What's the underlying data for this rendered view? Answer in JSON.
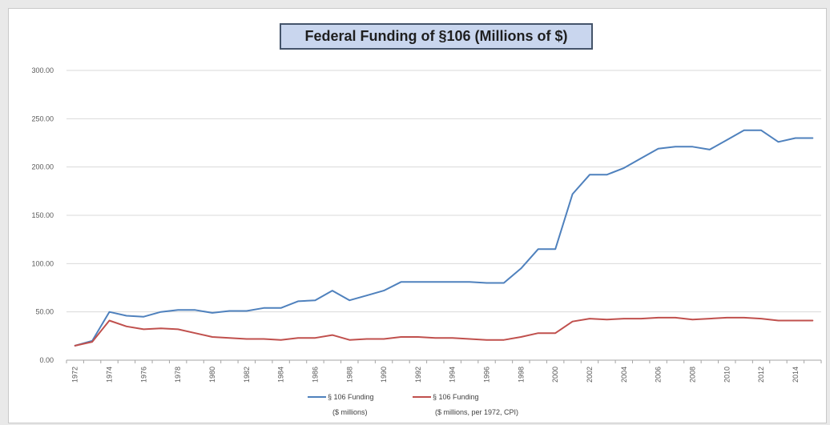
{
  "chart_data": {
    "type": "line",
    "title": "Federal Funding of §106 (Millions of $)",
    "xlabel": "",
    "ylabel": "",
    "ylim": [
      0,
      300
    ],
    "y_ticks": [
      "0.00",
      "50.00",
      "100.00",
      "150.00",
      "200.00",
      "250.00",
      "300.00"
    ],
    "x": [
      1972,
      1973,
      1974,
      1975,
      1976,
      1977,
      1978,
      1979,
      1980,
      1981,
      1982,
      1983,
      1984,
      1985,
      1986,
      1987,
      1988,
      1989,
      1990,
      1991,
      1992,
      1993,
      1994,
      1995,
      1996,
      1997,
      1998,
      1999,
      2000,
      2001,
      2002,
      2003,
      2004,
      2005,
      2006,
      2007,
      2008,
      2009,
      2010,
      2011,
      2012,
      2013,
      2014,
      2015
    ],
    "x_tick_labels": [
      "1972",
      "1974",
      "1976",
      "1978",
      "1980",
      "1982",
      "1984",
      "1986",
      "1988",
      "1990",
      "1992",
      "1994",
      "1996",
      "1998",
      "2000",
      "2002",
      "2004",
      "2006",
      "2008",
      "2010",
      "2012",
      "2014"
    ],
    "grid": "horizontal",
    "legend_position": "bottom",
    "series": [
      {
        "name": "§ 106 Funding\n($ millions)",
        "legend_line1": "§ 106 Funding",
        "legend_line2": "($ millions)",
        "color": "#4f81bd",
        "values": [
          15,
          20,
          50,
          46,
          45,
          50,
          52,
          52,
          49,
          51,
          51,
          54,
          54,
          61,
          62,
          72,
          62,
          67,
          72,
          81,
          81,
          81,
          81,
          81,
          80,
          80,
          95,
          115,
          115,
          172,
          192,
          192,
          199,
          209,
          219,
          221,
          221,
          218,
          228,
          238,
          238,
          226,
          230,
          230
        ]
      },
      {
        "name": "§ 106 Funding\n($ millions, per 1972, CPI)",
        "legend_line1": "§ 106 Funding",
        "legend_line2": "($ millions, per 1972, CPI)",
        "color": "#c0504d",
        "values": [
          15,
          19,
          41,
          35,
          32,
          33,
          32,
          28,
          24,
          23,
          22,
          22,
          21,
          23,
          23,
          26,
          21,
          22,
          22,
          24,
          24,
          23,
          23,
          22,
          21,
          21,
          24,
          28,
          28,
          40,
          43,
          42,
          43,
          43,
          44,
          44,
          42,
          43,
          44,
          44,
          43,
          41,
          41,
          41
        ]
      }
    ]
  }
}
